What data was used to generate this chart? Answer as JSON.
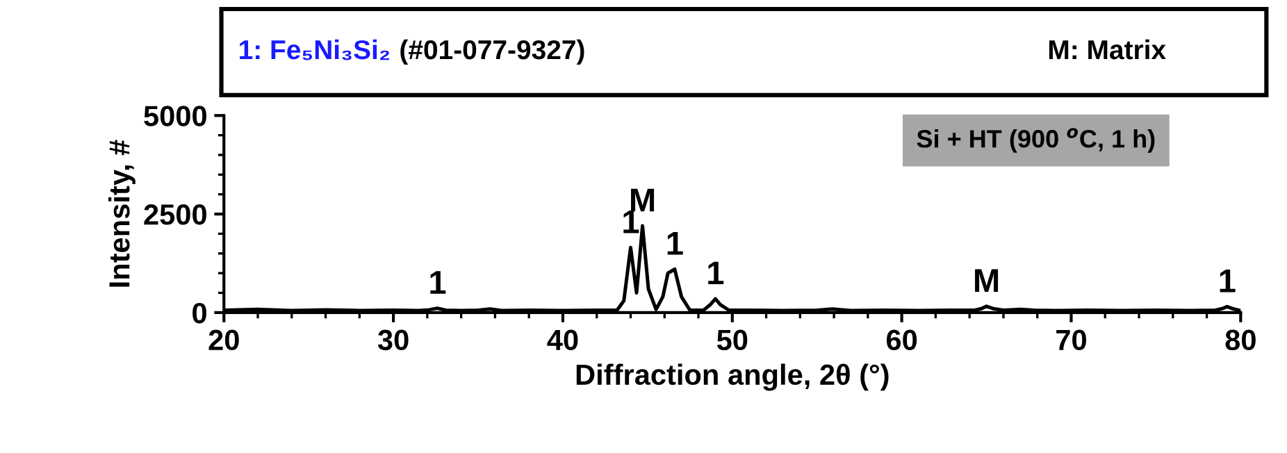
{
  "chart_data": {
    "type": "line",
    "xlabel": "Diffraction angle, 2θ (°)",
    "ylabel": "Intensity, #",
    "xlim": [
      20,
      80
    ],
    "xticks": [
      20,
      30,
      40,
      50,
      60,
      70,
      80
    ],
    "ylim": [
      0,
      5000
    ],
    "yticks": [
      0,
      2500,
      5000
    ],
    "grid": false,
    "marker": "none",
    "line_style": "solid",
    "series": [
      {
        "color": "#000000",
        "x": [
          20,
          22,
          24,
          26,
          28,
          30,
          31.5,
          32.1,
          32.6,
          33.1,
          34,
          35,
          35.7,
          36.4,
          38,
          40,
          42,
          43.2,
          43.6,
          44.0,
          44.35,
          44.7,
          45.05,
          45.5,
          45.9,
          46.2,
          46.6,
          47.0,
          47.5,
          48.3,
          48.7,
          49.0,
          49.3,
          49.8,
          51,
          53,
          55,
          55.9,
          57,
          59,
          61,
          63,
          64.3,
          64.7,
          65.0,
          65.4,
          66,
          67,
          67.8,
          69,
          71,
          73,
          75,
          77,
          78.5,
          78.9,
          79.2,
          79.6,
          80
        ],
        "values": [
          60,
          80,
          50,
          70,
          50,
          60,
          50,
          70,
          110,
          60,
          50,
          60,
          90,
          50,
          60,
          50,
          60,
          60,
          300,
          1650,
          500,
          2200,
          600,
          80,
          400,
          1000,
          1100,
          400,
          60,
          60,
          200,
          350,
          200,
          60,
          60,
          50,
          60,
          90,
          50,
          60,
          50,
          60,
          60,
          100,
          160,
          100,
          60,
          80,
          60,
          50,
          60,
          50,
          60,
          50,
          60,
          100,
          150,
          90,
          50
        ]
      }
    ],
    "annotations": [
      {
        "text": "1",
        "x": 32.6,
        "y": 110
      },
      {
        "text": "1",
        "x": 44.0,
        "y": 1650
      },
      {
        "text": "M",
        "x": 44.7,
        "y": 2200
      },
      {
        "text": "1",
        "x": 46.6,
        "y": 1100
      },
      {
        "text": "1",
        "x": 49.0,
        "y": 350
      },
      {
        "text": "M",
        "x": 65.0,
        "y": 160
      },
      {
        "text": "1",
        "x": 79.2,
        "y": 150
      },
      "1: Fe₅Ni₃Si₂",
      "(#01-077-9327)",
      "M: Matrix",
      "Si + HT (900 $^{o}$C, 1 h)"
    ]
  }
}
